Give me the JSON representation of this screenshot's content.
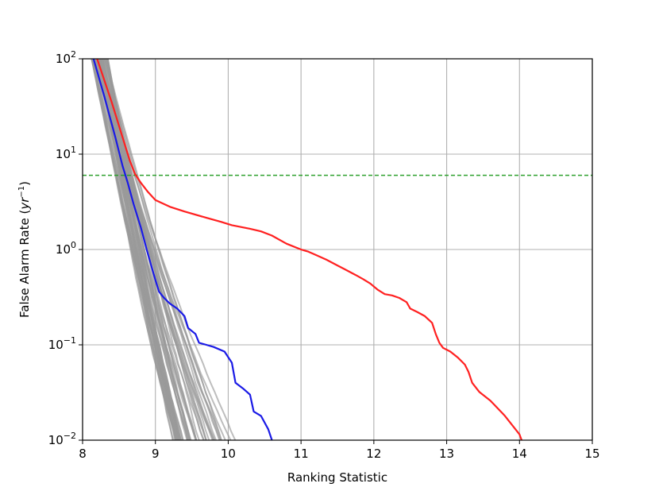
{
  "chart_data": {
    "type": "line",
    "xlabel": "Ranking Statistic",
    "ylabel_main": "False Alarm Rate (",
    "ylabel_math_base": "yr",
    "ylabel_math_sup": "−1",
    "ylabel_close": ")",
    "xlim": [
      8,
      15
    ],
    "ylim": [
      0.01,
      100
    ],
    "yscale": "log",
    "grid": true,
    "legend": "none",
    "xticks": [
      {
        "value": 8,
        "label": "8"
      },
      {
        "value": 9,
        "label": "9"
      },
      {
        "value": 10,
        "label": "10"
      },
      {
        "value": 11,
        "label": "11"
      },
      {
        "value": 12,
        "label": "12"
      },
      {
        "value": 13,
        "label": "13"
      },
      {
        "value": 14,
        "label": "14"
      },
      {
        "value": 15,
        "label": "15"
      }
    ],
    "yticks": [
      {
        "value": 0.01,
        "base": "10",
        "exp": "−2"
      },
      {
        "value": 0.1,
        "base": "10",
        "exp": "−1"
      },
      {
        "value": 1,
        "base": "10",
        "exp": "0"
      },
      {
        "value": 10,
        "base": "10",
        "exp": "1"
      },
      {
        "value": 100,
        "base": "10",
        "exp": "2"
      }
    ],
    "threshold": {
      "y": 6,
      "color": "#2ca02c",
      "style": "dashed"
    },
    "series": [
      {
        "color": "#ff2020",
        "x": [
          8.2,
          8.4,
          8.55,
          8.65,
          8.72,
          8.8,
          8.9,
          9.0,
          9.2,
          9.4,
          9.7,
          9.9,
          10.05,
          10.3,
          10.45,
          10.6,
          10.8,
          11.0,
          11.1,
          11.2,
          11.35,
          11.5,
          11.6,
          11.75,
          11.85,
          11.95,
          12.05,
          12.15,
          12.25,
          12.35,
          12.45,
          12.5,
          12.6,
          12.7,
          12.8,
          12.85,
          12.9,
          12.95,
          13.05,
          13.15,
          13.25,
          13.3,
          13.35,
          13.45,
          13.6,
          13.8,
          14.0,
          14.03
        ],
        "y": [
          100,
          35,
          15,
          8.5,
          6.2,
          5.0,
          4.0,
          3.3,
          2.8,
          2.5,
          2.15,
          1.95,
          1.8,
          1.65,
          1.55,
          1.4,
          1.15,
          1.0,
          0.95,
          0.88,
          0.78,
          0.68,
          0.62,
          0.54,
          0.49,
          0.44,
          0.38,
          0.34,
          0.33,
          0.31,
          0.28,
          0.24,
          0.22,
          0.2,
          0.17,
          0.13,
          0.105,
          0.093,
          0.085,
          0.074,
          0.062,
          0.052,
          0.04,
          0.032,
          0.026,
          0.018,
          0.0115,
          0.01
        ]
      },
      {
        "color": "#1a1ae6",
        "x": [
          8.15,
          8.3,
          8.45,
          8.55,
          8.62,
          8.7,
          8.8,
          8.88,
          8.95,
          9.0,
          9.05,
          9.12,
          9.2,
          9.3,
          9.4,
          9.45,
          9.55,
          9.6,
          9.7,
          9.8,
          9.95,
          10.05,
          10.1,
          10.2,
          10.3,
          10.35,
          10.45,
          10.55,
          10.6
        ],
        "y": [
          100,
          40,
          15,
          7.5,
          5.0,
          3.0,
          1.7,
          1.0,
          0.65,
          0.48,
          0.36,
          0.31,
          0.27,
          0.24,
          0.2,
          0.15,
          0.13,
          0.105,
          0.1,
          0.095,
          0.085,
          0.065,
          0.04,
          0.035,
          0.03,
          0.02,
          0.018,
          0.013,
          0.01
        ]
      }
    ],
    "background_series": {
      "color": "#999999",
      "count": 60,
      "x_at_100": [
        8.12,
        8.35
      ],
      "x_at_0_01": [
        9.3,
        10.1
      ],
      "note_hidden": ""
    }
  }
}
